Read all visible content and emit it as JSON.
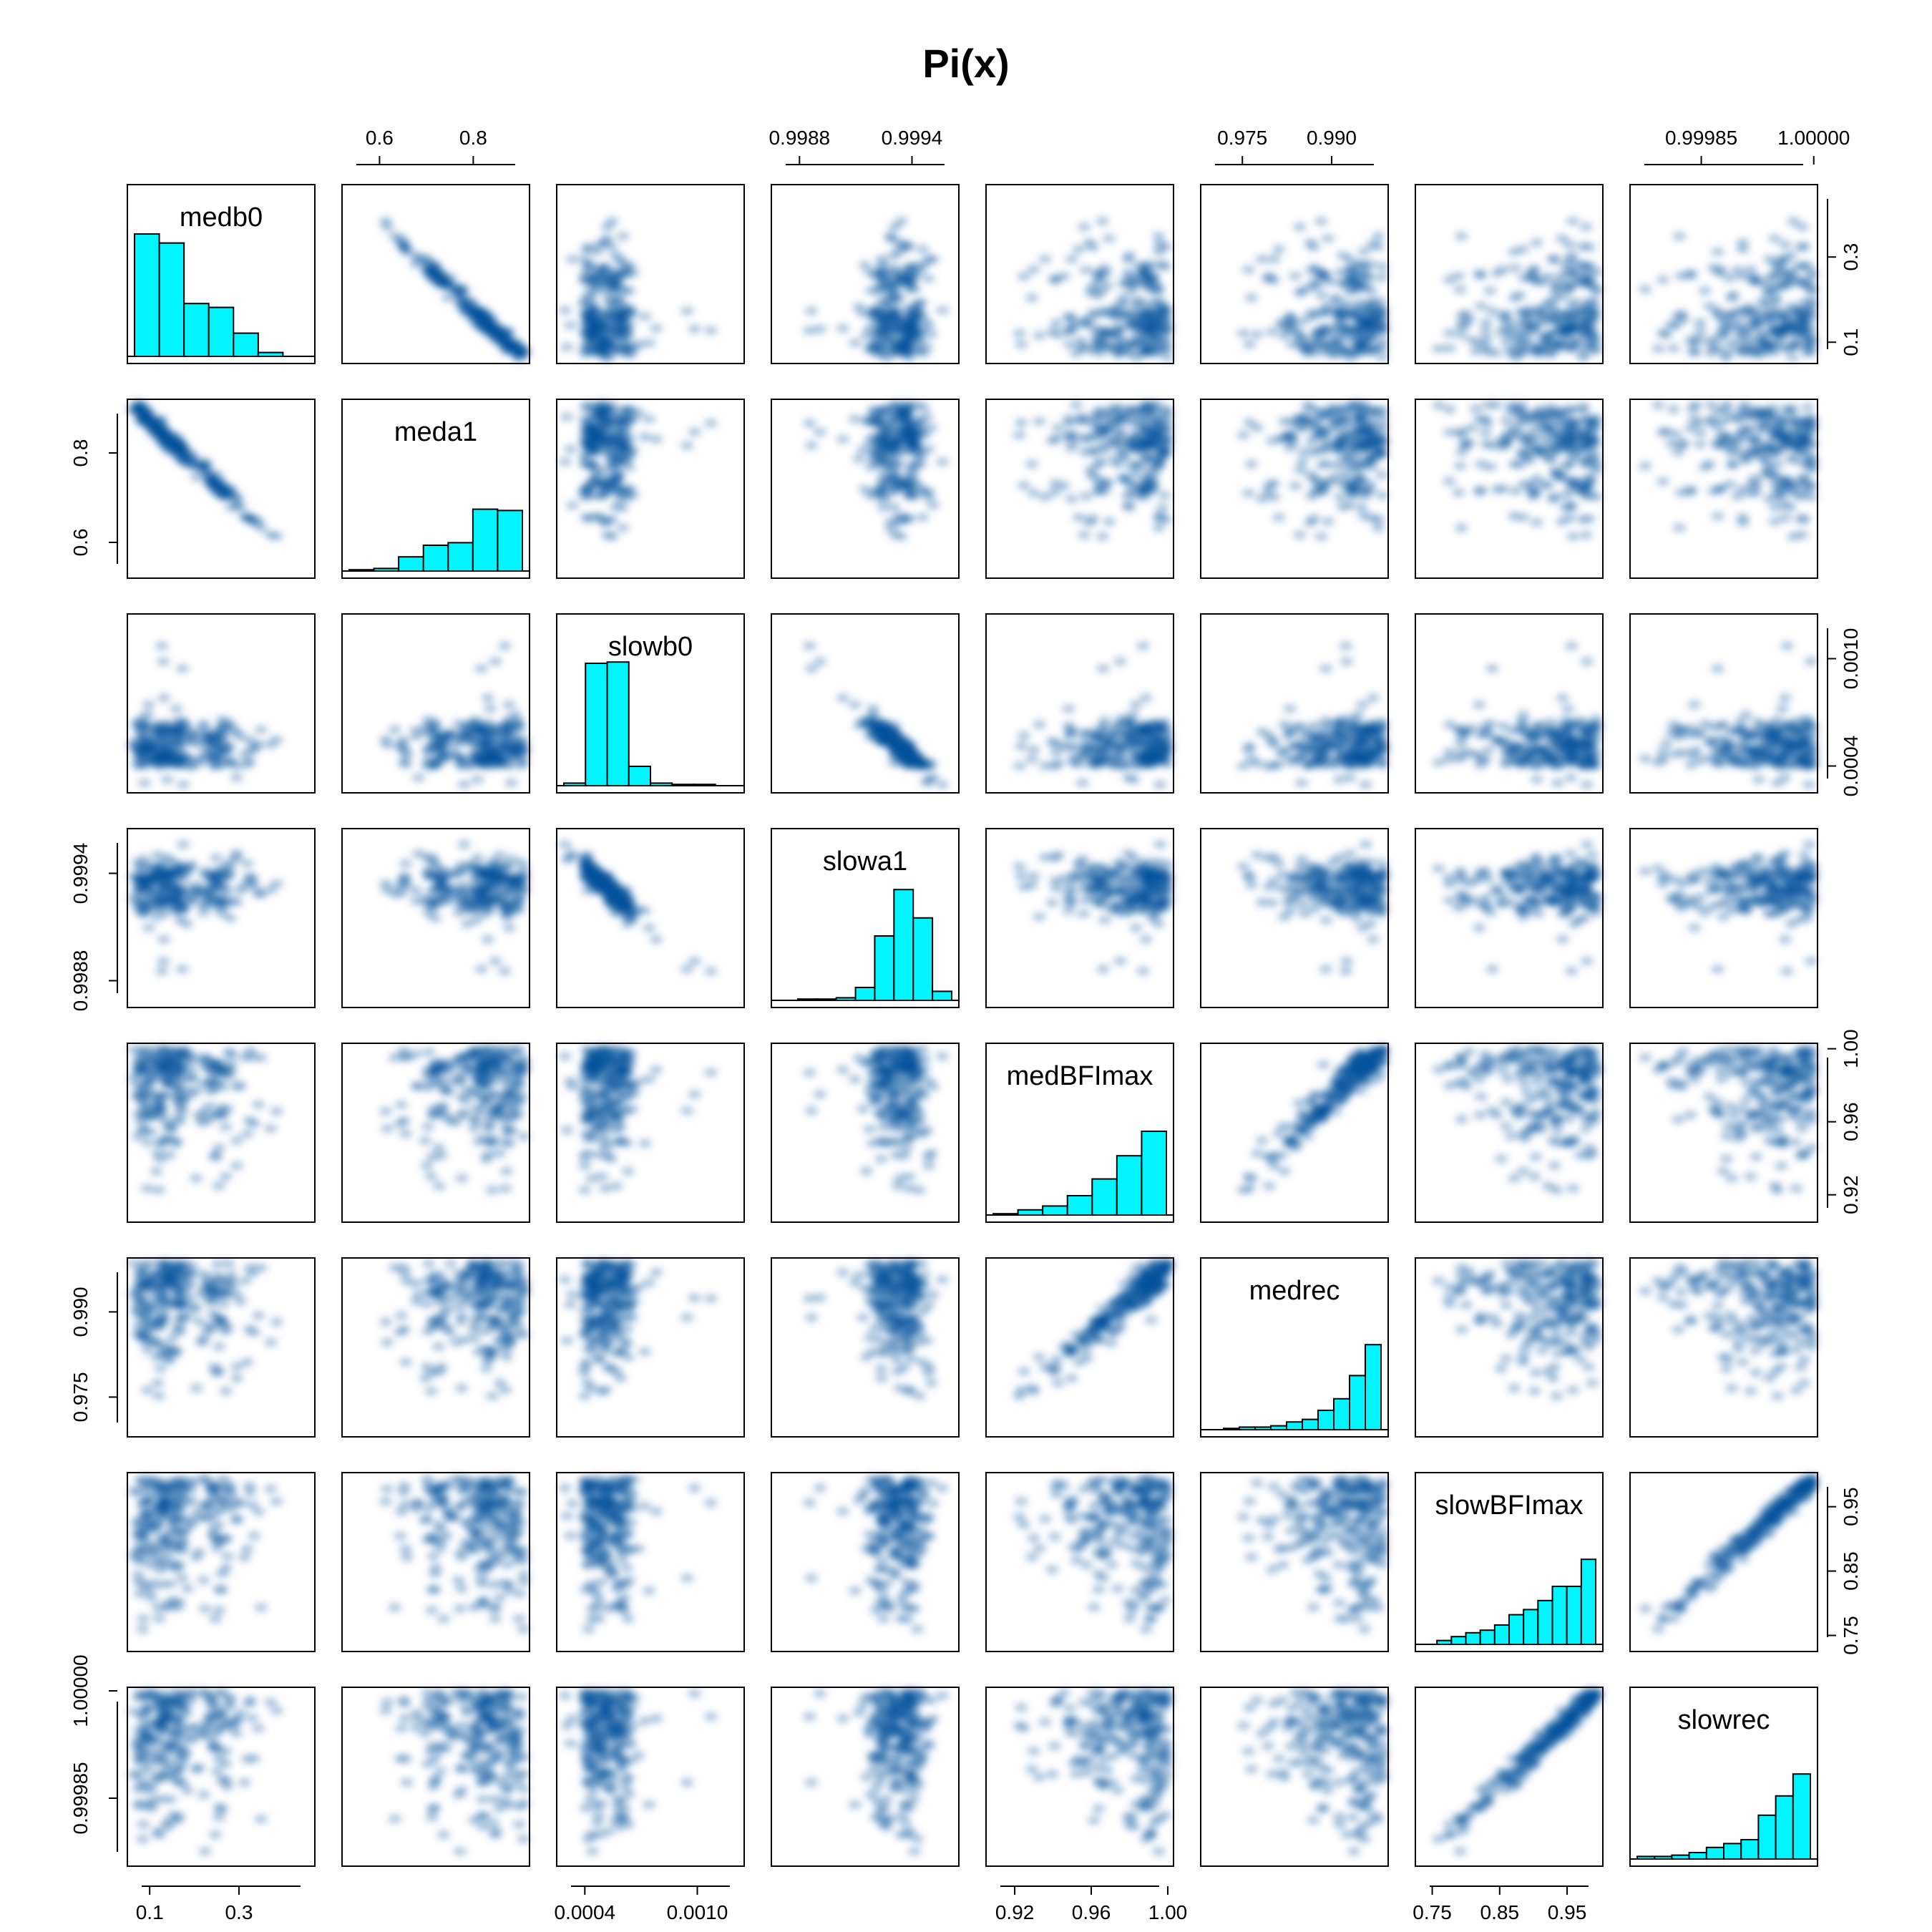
{
  "chart_data": {
    "type": "scatter",
    "subtype": "scatterplot-matrix",
    "title": "Pi(x)",
    "diagonal": "histogram",
    "colors": {
      "histogram": "#00F5FF",
      "smooth": "#08519C",
      "frame": "#000000"
    },
    "variables": [
      {
        "name": "medb0",
        "range": [
          0.05,
          0.47
        ],
        "ticks": [
          0.1,
          0.3
        ],
        "tick_labels": [
          "0.1",
          "0.3"
        ],
        "histogram": [
          0.95,
          0.88,
          0.41,
          0.38,
          0.18,
          0.03,
          0.0
        ]
      },
      {
        "name": "meda1",
        "range": [
          0.52,
          0.92
        ],
        "ticks": [
          0.6,
          0.8
        ],
        "tick_labels": [
          "0.6",
          "0.8"
        ],
        "histogram": [
          0.01,
          0.02,
          0.11,
          0.2,
          0.22,
          0.48,
          0.47
        ]
      },
      {
        "name": "slowb0",
        "range": [
          0.00025,
          0.00125
        ],
        "ticks": [
          0.0004,
          0.001
        ],
        "tick_labels": [
          "0.0004",
          "0.0010"
        ],
        "histogram": [
          0.02,
          0.95,
          0.96,
          0.15,
          0.02,
          0.01,
          0.01,
          0.0
        ]
      },
      {
        "name": "slowa1",
        "range": [
          0.99865,
          0.99965
        ],
        "ticks": [
          0.9988,
          0.9994
        ],
        "tick_labels": [
          "0.9988",
          "0.9994"
        ],
        "histogram": [
          0.0,
          0.01,
          0.01,
          0.02,
          0.1,
          0.5,
          0.86,
          0.64,
          0.07
        ]
      },
      {
        "name": "medBFImax",
        "range": [
          0.905,
          1.003
        ],
        "ticks": [
          0.92,
          0.96,
          1.0
        ],
        "tick_labels": [
          "0.92",
          "0.96",
          "1.00"
        ],
        "histogram": [
          0.01,
          0.04,
          0.07,
          0.15,
          0.28,
          0.46,
          0.65
        ]
      },
      {
        "name": "medrec",
        "range": [
          0.968,
          0.9995
        ],
        "ticks": [
          0.975,
          0.99
        ],
        "tick_labels": [
          "0.975",
          "0.990"
        ],
        "histogram": [
          0.0,
          0.01,
          0.02,
          0.02,
          0.03,
          0.06,
          0.08,
          0.15,
          0.24,
          0.42,
          0.66
        ]
      },
      {
        "name": "slowBFImax",
        "range": [
          0.725,
          1.003
        ],
        "ticks": [
          0.75,
          0.85,
          0.95
        ],
        "tick_labels": [
          "0.75",
          "0.85",
          "0.95"
        ],
        "histogram": [
          0.0,
          0.03,
          0.06,
          0.09,
          0.11,
          0.15,
          0.23,
          0.27,
          0.34,
          0.45,
          0.45,
          0.66
        ]
      },
      {
        "name": "slowrec",
        "range": [
          0.999755,
          1.000005
        ],
        "ticks": [
          0.99985,
          1.0
        ],
        "tick_labels": [
          "0.99985",
          "1.00000"
        ],
        "histogram": [
          0.02,
          0.02,
          0.03,
          0.05,
          0.09,
          0.12,
          0.15,
          0.34,
          0.49,
          0.66
        ]
      }
    ]
  }
}
